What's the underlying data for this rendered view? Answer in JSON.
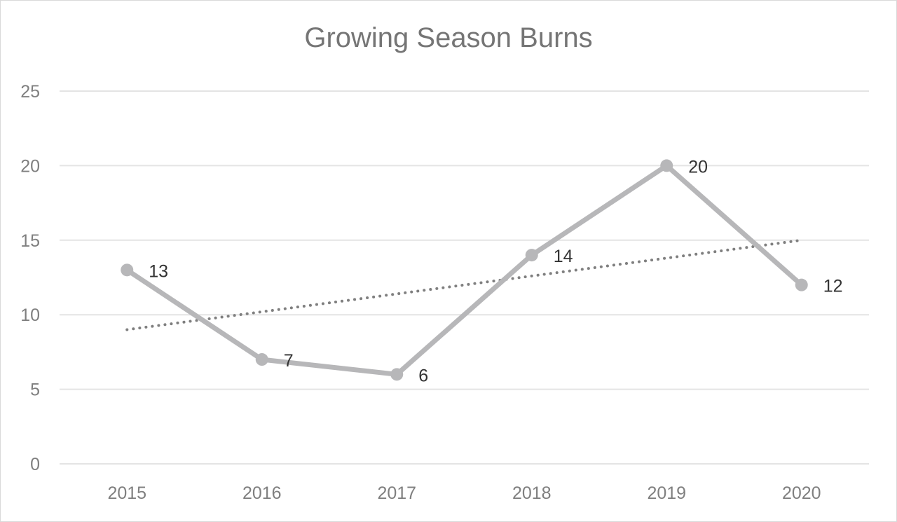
{
  "chart_data": {
    "type": "line",
    "title": "Growing Season Burns",
    "xlabel": "",
    "ylabel": "",
    "categories": [
      "2015",
      "2016",
      "2017",
      "2018",
      "2019",
      "2020"
    ],
    "series": [
      {
        "values": [
          13,
          7,
          6,
          14,
          20,
          12
        ],
        "color": "#b7b7b9",
        "data_labels": [
          "13",
          "7",
          "6",
          "14",
          "20",
          "12"
        ]
      }
    ],
    "trendline": {
      "type": "linear",
      "style": "dotted",
      "color": "#7f7f7f",
      "values": [
        9,
        10.2,
        11.4,
        12.6,
        13.8,
        15
      ]
    },
    "ylim": [
      0,
      25
    ],
    "yticks": [
      "0",
      "5",
      "10",
      "15",
      "20",
      "25"
    ],
    "grid": "horizontal",
    "legend": "none",
    "colors": {
      "gridline": "#e4e4e4",
      "tick_text": "#7f7f7f",
      "title_text": "#757575",
      "label_text": "#333333"
    }
  }
}
